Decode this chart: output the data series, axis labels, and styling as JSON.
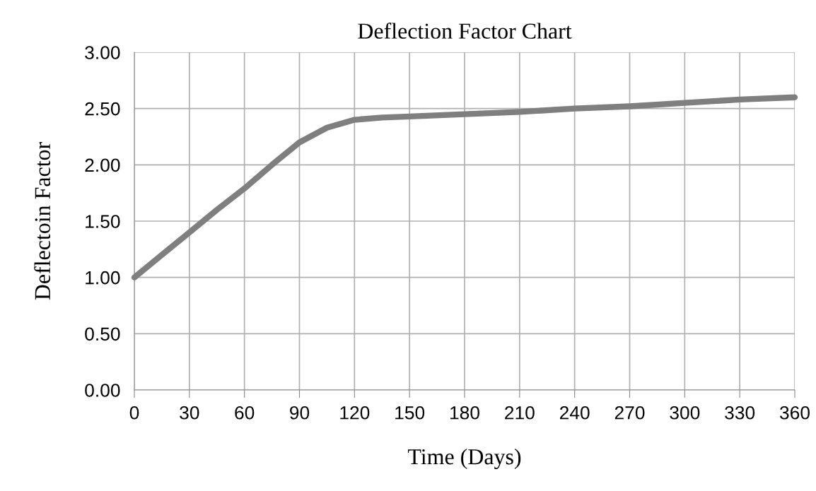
{
  "chart_data": {
    "type": "line",
    "title": "Deflection Factor Chart",
    "xlabel": "Time (Days)",
    "ylabel": "Deflectoin Factor",
    "x": [
      0,
      15,
      30,
      45,
      60,
      75,
      90,
      105,
      120,
      135,
      150,
      180,
      210,
      240,
      270,
      300,
      330,
      360
    ],
    "series": [
      {
        "color": "#7f7f7f",
        "values": [
          1.0,
          1.2,
          1.4,
          1.6,
          1.79,
          2.0,
          2.2,
          2.33,
          2.4,
          2.42,
          2.43,
          2.45,
          2.47,
          2.5,
          2.52,
          2.55,
          2.58,
          2.6
        ]
      }
    ],
    "xlim": [
      0,
      360
    ],
    "xticks": [
      0,
      30,
      60,
      90,
      120,
      150,
      180,
      210,
      240,
      270,
      300,
      330,
      360
    ],
    "ylim": [
      0,
      3
    ],
    "yticks": [
      {
        "value": 0,
        "label": "0.00"
      },
      {
        "value": 0.5,
        "label": "0.50"
      },
      {
        "value": 1,
        "label": "1.00"
      },
      {
        "value": 1.5,
        "label": "1.50"
      },
      {
        "value": 2,
        "label": "2.00"
      },
      {
        "value": 2.5,
        "label": "2.50"
      },
      {
        "value": 3,
        "label": "3.00"
      }
    ],
    "grid": true,
    "legend": false,
    "marker": "none",
    "line_style": "solid"
  }
}
